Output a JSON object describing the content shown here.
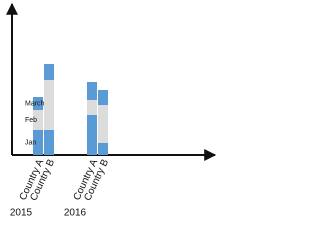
{
  "chart_data": {
    "type": "stacked_bar",
    "categories": [
      "Country A",
      "Country B",
      "Country A",
      "Country B"
    ],
    "groups": [
      "2015",
      "2016"
    ],
    "series": [
      {
        "name": "Jan",
        "color": "#5b9bd5",
        "values": [
          25,
          25,
          40,
          12
        ]
      },
      {
        "name": "Feb",
        "color": "#dcdcdc",
        "values": [
          20,
          50,
          15,
          38
        ]
      },
      {
        "name": "March",
        "color": "#5b9bd5",
        "values": [
          13,
          16,
          18,
          15
        ]
      }
    ],
    "ylim": [
      0,
      150
    ]
  }
}
